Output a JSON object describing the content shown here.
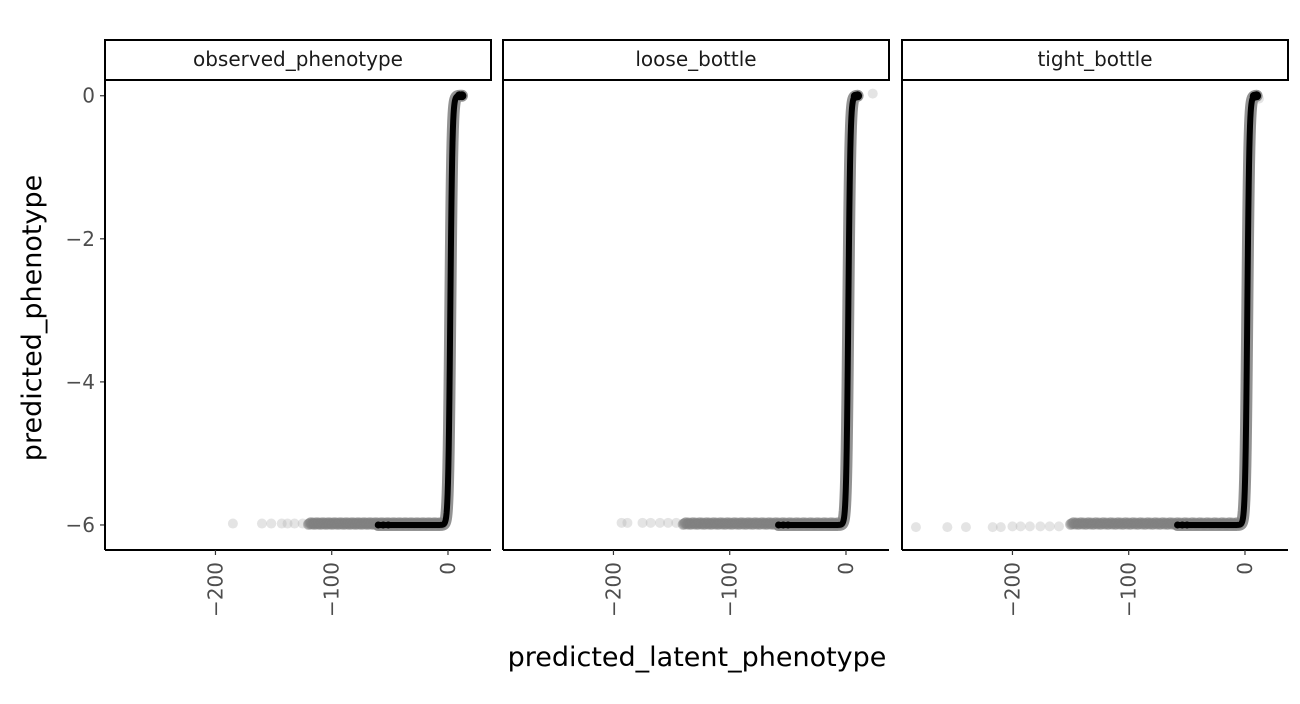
{
  "chart_data": {
    "type": "scatter",
    "xlabel": "predicted_latent_phenotype",
    "ylabel": "predicted_phenotype",
    "xlim": [
      -295,
      37
    ],
    "ylim": [
      -6.35,
      0.22
    ],
    "x_ticks": [
      -200,
      -100,
      0
    ],
    "x_tick_labels": [
      "−200",
      "−100",
      "0"
    ],
    "y_ticks": [
      0,
      -2,
      -4,
      -6
    ],
    "y_tick_labels": [
      "0",
      "−2",
      "−4",
      "−6"
    ],
    "grid": false,
    "legend": "none",
    "panels": [
      {
        "title": "observed_phenotype",
        "curve": {
          "x_min": -60,
          "x_max": 12
        },
        "spread": {
          "x_min": -120,
          "x_max": -5
        },
        "faint_points": [
          {
            "x": -185,
            "y": -5.98
          },
          {
            "x": -160,
            "y": -5.98
          },
          {
            "x": -152,
            "y": -5.98
          },
          {
            "x": -143,
            "y": -5.98
          },
          {
            "x": -138,
            "y": -5.98
          },
          {
            "x": -132,
            "y": -5.98
          },
          {
            "x": -125,
            "y": -5.98
          }
        ]
      },
      {
        "title": "loose_bottle",
        "curve": {
          "x_min": -58,
          "x_max": 10
        },
        "spread": {
          "x_min": -140,
          "x_max": -5
        },
        "faint_points": [
          {
            "x": -193,
            "y": -5.97
          },
          {
            "x": -188,
            "y": -5.97
          },
          {
            "x": -175,
            "y": -5.97
          },
          {
            "x": -168,
            "y": -5.97
          },
          {
            "x": -160,
            "y": -5.97
          },
          {
            "x": -153,
            "y": -5.97
          },
          {
            "x": -146,
            "y": -5.97
          },
          {
            "x": 23,
            "y": 0.03
          }
        ]
      },
      {
        "title": "tight_bottle",
        "curve": {
          "x_min": -58,
          "x_max": 10
        },
        "spread": {
          "x_min": -150,
          "x_max": -5
        },
        "faint_points": [
          {
            "x": -283,
            "y": -6.03
          },
          {
            "x": -256,
            "y": -6.03
          },
          {
            "x": -240,
            "y": -6.03
          },
          {
            "x": -217,
            "y": -6.03
          },
          {
            "x": -210,
            "y": -6.03
          },
          {
            "x": -200,
            "y": -6.02
          },
          {
            "x": -193,
            "y": -6.02
          },
          {
            "x": -185,
            "y": -6.02
          },
          {
            "x": -176,
            "y": -6.02
          },
          {
            "x": -168,
            "y": -6.02
          },
          {
            "x": -160,
            "y": -6.02
          },
          {
            "x": 12,
            "y": -0.04
          }
        ]
      }
    ],
    "colors": {
      "curve": "#000000",
      "cloud": "#808080",
      "faint": "#b3b3b3",
      "tick_text": "#4d4d4d",
      "axis": "#000000"
    }
  }
}
